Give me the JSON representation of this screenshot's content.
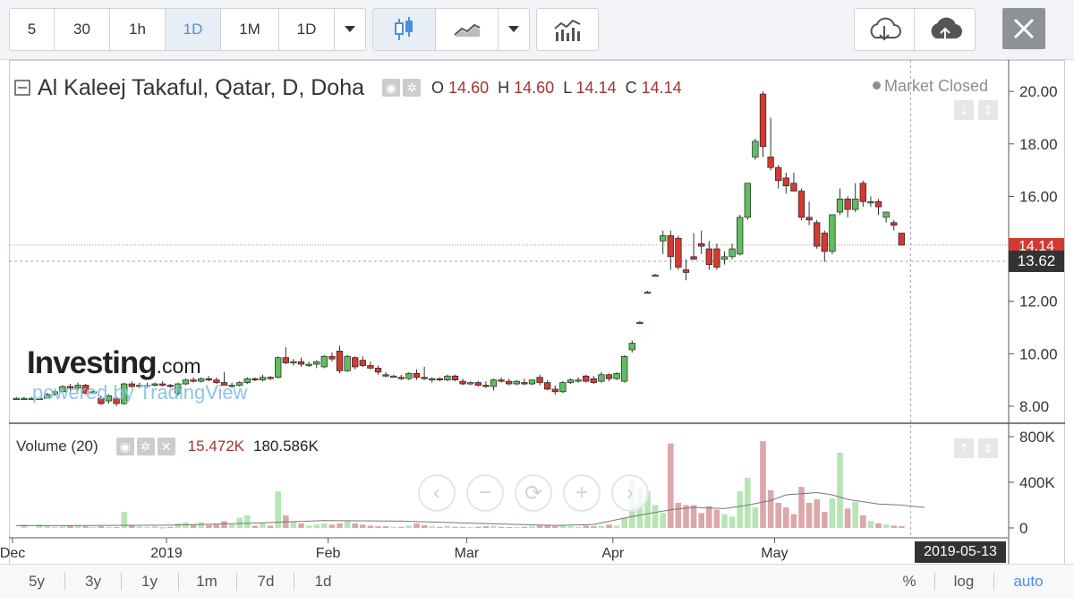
{
  "toolbar": {
    "intervals": [
      "5",
      "30",
      "1h",
      "1D",
      "1M",
      "1D"
    ],
    "active_interval_index": 3
  },
  "legend": {
    "symbol": "Al Kaleej Takaful, Qatar, D, Doha",
    "o_label": "O",
    "o_value": "14.60",
    "h_label": "H",
    "h_value": "14.60",
    "l_label": "L",
    "l_value": "14.14",
    "c_label": "C",
    "c_value": "14.14",
    "market_status": "Market Closed"
  },
  "volume_legend": {
    "title": "Volume (20)",
    "value": "15.472K",
    "ma_value": "180.586K"
  },
  "watermark": {
    "brand": "Investing",
    "brand_suffix": ".com",
    "powered": "powered by TradingView"
  },
  "bottom_bar": {
    "ranges": [
      "5y",
      "3y",
      "1y",
      "1m",
      "7d",
      "1d"
    ],
    "percent": "%",
    "log": "log",
    "auto": "auto"
  },
  "price_tags": {
    "last": "14.14",
    "crosshair": "13.62"
  },
  "date_tag": "2019-05-13",
  "colors": {
    "up": "#5fbe5f",
    "down": "#d23b31",
    "vol_up": "#b7e5b4",
    "vol_down": "#dba7a9",
    "accent": "#4a90e2"
  },
  "chart_data": {
    "type": "candlestick",
    "ylim": [
      7.35,
      21.2
    ],
    "y_ticks": [
      8.0,
      10.0,
      12.0,
      14.0,
      16.0,
      18.0,
      20.0
    ],
    "volume_ylim": [
      0,
      800000
    ],
    "volume_ticks": [
      0,
      400000,
      800000
    ],
    "volume_tick_labels": [
      "0",
      "400K",
      "800K"
    ],
    "x_ticks": [
      "Dec",
      "2019",
      "Feb",
      "Mar",
      "Apr",
      "May"
    ],
    "x_tick_pos": [
      0,
      20,
      41,
      59,
      78,
      99
    ],
    "candles": [
      {
        "o": 8.3,
        "h": 8.35,
        "l": 8.25,
        "c": 8.3,
        "v": 0
      },
      {
        "o": 8.3,
        "h": 8.35,
        "l": 8.25,
        "c": 8.3,
        "v": 30000
      },
      {
        "o": 8.3,
        "h": 8.35,
        "l": 8.25,
        "c": 8.3,
        "v": 0
      },
      {
        "o": 8.3,
        "h": 8.35,
        "l": 8.25,
        "c": 8.3,
        "v": 30000
      },
      {
        "o": 8.3,
        "h": 8.5,
        "l": 8.3,
        "c": 8.45,
        "v": 20000
      },
      {
        "o": 8.45,
        "h": 8.6,
        "l": 8.4,
        "c": 8.55,
        "v": 10000
      },
      {
        "o": 8.55,
        "h": 8.8,
        "l": 8.5,
        "c": 8.75,
        "v": 15000
      },
      {
        "o": 8.75,
        "h": 8.85,
        "l": 8.6,
        "c": 8.7,
        "v": 20000
      },
      {
        "o": 8.7,
        "h": 8.9,
        "l": 8.6,
        "c": 8.8,
        "v": 25000
      },
      {
        "o": 8.8,
        "h": 8.85,
        "l": 8.45,
        "c": 8.5,
        "v": 15000
      },
      {
        "o": 8.5,
        "h": 8.6,
        "l": 8.45,
        "c": 8.55,
        "v": 10000
      },
      {
        "o": 8.3,
        "h": 8.4,
        "l": 8.05,
        "c": 8.1,
        "v": 15000
      },
      {
        "o": 8.2,
        "h": 8.45,
        "l": 8.1,
        "c": 8.4,
        "v": 10000
      },
      {
        "o": 8.3,
        "h": 8.4,
        "l": 8.0,
        "c": 8.1,
        "v": 8000
      },
      {
        "o": 8.1,
        "h": 8.9,
        "l": 8.05,
        "c": 8.85,
        "v": 140000
      },
      {
        "o": 8.85,
        "h": 8.95,
        "l": 8.7,
        "c": 8.75,
        "v": 20000
      },
      {
        "o": 8.75,
        "h": 8.9,
        "l": 8.7,
        "c": 8.8,
        "v": 15000
      },
      {
        "o": 8.8,
        "h": 8.9,
        "l": 8.7,
        "c": 8.8,
        "v": 10000
      },
      {
        "o": 8.8,
        "h": 8.9,
        "l": 8.75,
        "c": 8.85,
        "v": 15000
      },
      {
        "o": 8.85,
        "h": 8.95,
        "l": 8.75,
        "c": 8.8,
        "v": 5000
      },
      {
        "o": 8.8,
        "h": 8.85,
        "l": 8.7,
        "c": 8.75,
        "v": 10000
      },
      {
        "o": 8.5,
        "h": 8.9,
        "l": 8.4,
        "c": 8.85,
        "v": 40000
      },
      {
        "o": 8.85,
        "h": 9.05,
        "l": 8.8,
        "c": 9.0,
        "v": 50000
      },
      {
        "o": 9.0,
        "h": 9.1,
        "l": 8.9,
        "c": 8.95,
        "v": 30000
      },
      {
        "o": 8.95,
        "h": 9.1,
        "l": 8.9,
        "c": 9.05,
        "v": 50000
      },
      {
        "o": 9.05,
        "h": 9.15,
        "l": 8.95,
        "c": 9.0,
        "v": 25000
      },
      {
        "o": 9.0,
        "h": 9.1,
        "l": 8.85,
        "c": 8.9,
        "v": 30000
      },
      {
        "o": 8.9,
        "h": 9.3,
        "l": 8.8,
        "c": 8.8,
        "v": 60000
      },
      {
        "o": 8.8,
        "h": 8.9,
        "l": 8.7,
        "c": 8.8,
        "v": 30000
      },
      {
        "o": 8.8,
        "h": 8.95,
        "l": 8.75,
        "c": 8.9,
        "v": 90000
      },
      {
        "o": 8.9,
        "h": 9.1,
        "l": 8.85,
        "c": 9.05,
        "v": 110000
      },
      {
        "o": 9.05,
        "h": 9.1,
        "l": 8.95,
        "c": 9.0,
        "v": 20000
      },
      {
        "o": 9.0,
        "h": 9.2,
        "l": 8.95,
        "c": 9.1,
        "v": 40000
      },
      {
        "o": 9.1,
        "h": 9.15,
        "l": 9.0,
        "c": 9.05,
        "v": 20000
      },
      {
        "o": 9.1,
        "h": 9.9,
        "l": 9.05,
        "c": 9.85,
        "v": 320000
      },
      {
        "o": 9.85,
        "h": 10.25,
        "l": 9.6,
        "c": 9.65,
        "v": 110000
      },
      {
        "o": 9.65,
        "h": 9.8,
        "l": 9.55,
        "c": 9.7,
        "v": 60000
      },
      {
        "o": 9.7,
        "h": 9.85,
        "l": 9.5,
        "c": 9.6,
        "v": 40000
      },
      {
        "o": 9.6,
        "h": 9.7,
        "l": 9.5,
        "c": 9.6,
        "v": 20000
      },
      {
        "o": 9.6,
        "h": 9.75,
        "l": 9.45,
        "c": 9.7,
        "v": 30000
      },
      {
        "o": 9.5,
        "h": 9.95,
        "l": 9.45,
        "c": 9.9,
        "v": 40000
      },
      {
        "o": 9.9,
        "h": 10.05,
        "l": 9.7,
        "c": 9.8,
        "v": 30000
      },
      {
        "o": 10.1,
        "h": 10.3,
        "l": 9.25,
        "c": 9.35,
        "v": 40000
      },
      {
        "o": 9.35,
        "h": 9.95,
        "l": 9.3,
        "c": 9.9,
        "v": 60000
      },
      {
        "o": 9.85,
        "h": 9.9,
        "l": 9.4,
        "c": 9.5,
        "v": 40000
      },
      {
        "o": 9.75,
        "h": 9.9,
        "l": 9.5,
        "c": 9.55,
        "v": 30000
      },
      {
        "o": 9.55,
        "h": 9.7,
        "l": 9.4,
        "c": 9.45,
        "v": 20000
      },
      {
        "o": 9.45,
        "h": 9.55,
        "l": 9.2,
        "c": 9.3,
        "v": 15000
      },
      {
        "o": 9.2,
        "h": 9.3,
        "l": 9.1,
        "c": 9.15,
        "v": 15000
      },
      {
        "o": 9.15,
        "h": 9.2,
        "l": 9.1,
        "c": 9.15,
        "v": 10000
      },
      {
        "o": 9.1,
        "h": 9.2,
        "l": 9.0,
        "c": 9.05,
        "v": 10000
      },
      {
        "o": 9.05,
        "h": 9.3,
        "l": 9.0,
        "c": 9.25,
        "v": 20000
      },
      {
        "o": 9.25,
        "h": 9.4,
        "l": 9.0,
        "c": 9.1,
        "v": 40000
      },
      {
        "o": 9.1,
        "h": 9.5,
        "l": 9.0,
        "c": 9.05,
        "v": 25000
      },
      {
        "o": 9.0,
        "h": 9.1,
        "l": 8.9,
        "c": 9.05,
        "v": 15000
      },
      {
        "o": 9.05,
        "h": 9.1,
        "l": 8.95,
        "c": 9.0,
        "v": 10000
      },
      {
        "o": 9.0,
        "h": 9.2,
        "l": 8.95,
        "c": 9.15,
        "v": 20000
      },
      {
        "o": 9.15,
        "h": 9.2,
        "l": 8.95,
        "c": 9.0,
        "v": 10000
      },
      {
        "o": 8.95,
        "h": 9.05,
        "l": 8.8,
        "c": 8.85,
        "v": 10000
      },
      {
        "o": 8.85,
        "h": 8.95,
        "l": 8.8,
        "c": 8.9,
        "v": 8000
      },
      {
        "o": 8.9,
        "h": 8.95,
        "l": 8.75,
        "c": 8.8,
        "v": 10000
      },
      {
        "o": 8.8,
        "h": 8.95,
        "l": 8.7,
        "c": 8.75,
        "v": 15000
      },
      {
        "o": 8.75,
        "h": 9.05,
        "l": 8.6,
        "c": 9.0,
        "v": 20000
      },
      {
        "o": 9.0,
        "h": 9.1,
        "l": 8.9,
        "c": 8.95,
        "v": 10000
      },
      {
        "o": 8.95,
        "h": 9.05,
        "l": 8.8,
        "c": 8.85,
        "v": 8000
      },
      {
        "o": 8.85,
        "h": 9.0,
        "l": 8.8,
        "c": 8.95,
        "v": 10000
      },
      {
        "o": 8.9,
        "h": 9.05,
        "l": 8.8,
        "c": 8.85,
        "v": 10000
      },
      {
        "o": 8.85,
        "h": 9.0,
        "l": 8.8,
        "c": 9.0,
        "v": 15000
      },
      {
        "o": 9.1,
        "h": 9.2,
        "l": 8.8,
        "c": 8.9,
        "v": 20000
      },
      {
        "o": 8.9,
        "h": 9.0,
        "l": 8.6,
        "c": 8.65,
        "v": 20000
      },
      {
        "o": 8.65,
        "h": 8.8,
        "l": 8.45,
        "c": 8.55,
        "v": 15000
      },
      {
        "o": 8.55,
        "h": 8.95,
        "l": 8.5,
        "c": 8.9,
        "v": 20000
      },
      {
        "o": 8.9,
        "h": 9.05,
        "l": 8.85,
        "c": 9.0,
        "v": 15000
      },
      {
        "o": 9.0,
        "h": 9.1,
        "l": 8.9,
        "c": 9.0,
        "v": 10000
      },
      {
        "o": 9.15,
        "h": 9.2,
        "l": 8.9,
        "c": 8.95,
        "v": 20000
      },
      {
        "o": 9.05,
        "h": 9.15,
        "l": 8.85,
        "c": 8.9,
        "v": 15000
      },
      {
        "o": 8.95,
        "h": 9.3,
        "l": 8.9,
        "c": 9.2,
        "v": 20000
      },
      {
        "o": 9.2,
        "h": 9.25,
        "l": 8.95,
        "c": 9.05,
        "v": 30000
      },
      {
        "o": 9.05,
        "h": 9.3,
        "l": 9.0,
        "c": 9.25,
        "v": 20000
      },
      {
        "o": 8.95,
        "h": 9.95,
        "l": 8.9,
        "c": 9.9,
        "v": 90000
      },
      {
        "o": 10.15,
        "h": 10.5,
        "l": 10.05,
        "c": 10.4,
        "v": 410000
      },
      {
        "o": 11.2,
        "h": 11.25,
        "l": 11.15,
        "c": 11.2,
        "v": 350000
      },
      {
        "o": 12.35,
        "h": 12.4,
        "l": 12.3,
        "c": 12.35,
        "v": 320000
      },
      {
        "o": 13.0,
        "h": 13.05,
        "l": 12.95,
        "c": 13.0,
        "v": 200000
      },
      {
        "o": 14.3,
        "h": 14.7,
        "l": 13.8,
        "c": 14.5,
        "v": 130000
      },
      {
        "o": 14.5,
        "h": 14.7,
        "l": 13.2,
        "c": 13.7,
        "v": 740000
      },
      {
        "o": 14.4,
        "h": 14.5,
        "l": 13.2,
        "c": 13.3,
        "v": 220000
      },
      {
        "o": 13.2,
        "h": 13.6,
        "l": 12.8,
        "c": 13.1,
        "v": 200000
      },
      {
        "o": 13.7,
        "h": 14.6,
        "l": 13.6,
        "c": 13.6,
        "v": 200000
      },
      {
        "o": 14.2,
        "h": 14.7,
        "l": 13.8,
        "c": 14.1,
        "v": 130000
      },
      {
        "o": 14.0,
        "h": 14.3,
        "l": 13.2,
        "c": 13.4,
        "v": 190000
      },
      {
        "o": 14.0,
        "h": 14.2,
        "l": 13.2,
        "c": 13.3,
        "v": 160000
      },
      {
        "o": 13.6,
        "h": 13.9,
        "l": 13.4,
        "c": 13.7,
        "v": 120000
      },
      {
        "o": 13.7,
        "h": 14.2,
        "l": 13.6,
        "c": 14.0,
        "v": 100000
      },
      {
        "o": 13.8,
        "h": 15.3,
        "l": 13.75,
        "c": 15.2,
        "v": 320000
      },
      {
        "o": 15.2,
        "h": 16.5,
        "l": 15.1,
        "c": 16.5,
        "v": 440000
      },
      {
        "o": 17.5,
        "h": 18.2,
        "l": 17.4,
        "c": 18.1,
        "v": 180000
      },
      {
        "o": 19.9,
        "h": 20.0,
        "l": 17.5,
        "c": 17.9,
        "v": 760000
      },
      {
        "o": 17.5,
        "h": 19.0,
        "l": 17.0,
        "c": 17.1,
        "v": 330000
      },
      {
        "o": 17.1,
        "h": 17.2,
        "l": 16.3,
        "c": 16.6,
        "v": 220000
      },
      {
        "o": 16.7,
        "h": 16.9,
        "l": 16.1,
        "c": 16.4,
        "v": 180000
      },
      {
        "o": 16.5,
        "h": 16.9,
        "l": 16.2,
        "c": 16.2,
        "v": 120000
      },
      {
        "o": 16.2,
        "h": 16.3,
        "l": 15.1,
        "c": 15.2,
        "v": 360000
      },
      {
        "o": 15.2,
        "h": 15.8,
        "l": 14.9,
        "c": 15.1,
        "v": 220000
      },
      {
        "o": 15.0,
        "h": 15.1,
        "l": 14.0,
        "c": 14.1,
        "v": 250000
      },
      {
        "o": 14.6,
        "h": 14.7,
        "l": 13.5,
        "c": 13.9,
        "v": 140000
      },
      {
        "o": 13.9,
        "h": 15.3,
        "l": 13.8,
        "c": 15.3,
        "v": 260000
      },
      {
        "o": 15.4,
        "h": 16.3,
        "l": 15.3,
        "c": 15.9,
        "v": 660000
      },
      {
        "o": 15.9,
        "h": 16.0,
        "l": 15.2,
        "c": 15.5,
        "v": 170000
      },
      {
        "o": 15.5,
        "h": 16.5,
        "l": 15.4,
        "c": 15.9,
        "v": 230000
      },
      {
        "o": 16.5,
        "h": 16.6,
        "l": 15.6,
        "c": 15.8,
        "v": 110000
      },
      {
        "o": 15.8,
        "h": 16.0,
        "l": 15.6,
        "c": 15.8,
        "v": 60000
      },
      {
        "o": 15.8,
        "h": 15.9,
        "l": 15.3,
        "c": 15.6,
        "v": 40000
      },
      {
        "o": 15.2,
        "h": 15.4,
        "l": 15.0,
        "c": 15.4,
        "v": 30000
      },
      {
        "o": 15.0,
        "h": 15.1,
        "l": 14.7,
        "c": 14.9,
        "v": 20000
      },
      {
        "o": 14.6,
        "h": 14.6,
        "l": 14.14,
        "c": 14.14,
        "v": 15472
      }
    ],
    "volume_ma": [
      [
        0,
        20000
      ],
      [
        10,
        22000
      ],
      [
        20,
        25000
      ],
      [
        30,
        40000
      ],
      [
        40,
        65000
      ],
      [
        50,
        60000
      ],
      [
        60,
        40000
      ],
      [
        70,
        22000
      ],
      [
        75,
        30000
      ],
      [
        80,
        100000
      ],
      [
        85,
        160000
      ],
      [
        88,
        180000
      ],
      [
        92,
        170000
      ],
      [
        95,
        200000
      ],
      [
        98,
        240000
      ],
      [
        100,
        290000
      ],
      [
        104,
        310000
      ],
      [
        106,
        290000
      ],
      [
        108,
        250000
      ],
      [
        112,
        210000
      ],
      [
        115,
        200000
      ],
      [
        118,
        180586
      ]
    ]
  }
}
